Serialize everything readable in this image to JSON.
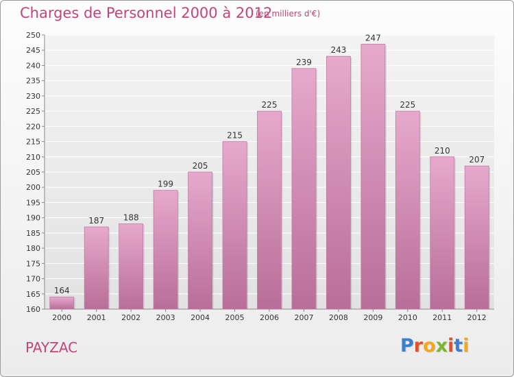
{
  "header": {
    "title": "Charges de Personnel 2000 à 2012",
    "subtitle": "(en milliers d'€)"
  },
  "footer": {
    "commune": "PAYZAC",
    "logo_text": "Proxiti",
    "logo_colors": [
      "#3a7fd0",
      "#e0502a",
      "#f2a81d",
      "#7ab829",
      "#e0502a",
      "#3a7fd0",
      "#f2a81d"
    ]
  },
  "colors": {
    "bar": "#d48eb5",
    "accent": "#c0457a",
    "axis": "#888888"
  },
  "chart_data": {
    "type": "bar",
    "title": "Charges de Personnel 2000 à 2012",
    "categories": [
      "2000",
      "2001",
      "2002",
      "2003",
      "2004",
      "2005",
      "2006",
      "2007",
      "2008",
      "2009",
      "2010",
      "2011",
      "2012"
    ],
    "values": [
      164,
      187,
      188,
      199,
      205,
      215,
      225,
      239,
      243,
      247,
      225,
      210,
      207
    ],
    "ylim": [
      160,
      250
    ],
    "ytick_step": 5,
    "grid": true,
    "data_labels": true
  }
}
